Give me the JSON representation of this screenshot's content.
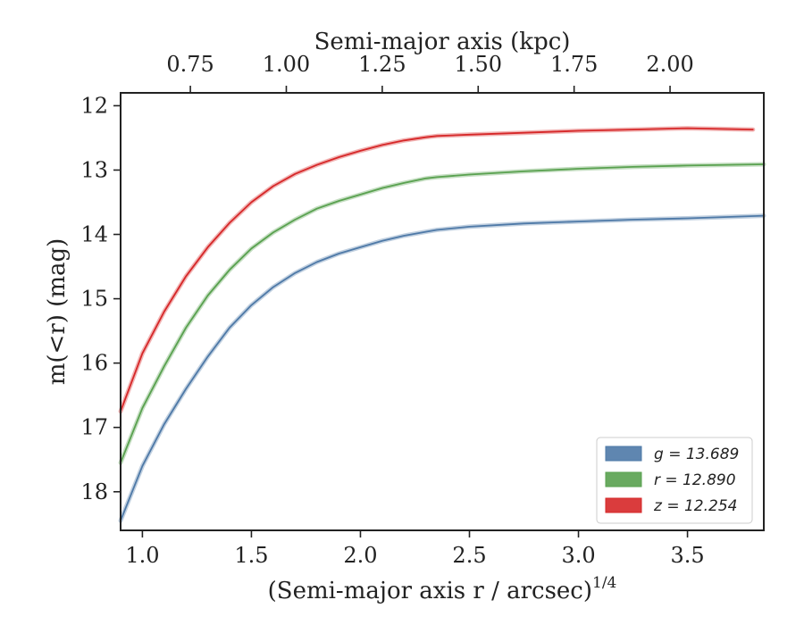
{
  "chart_data": {
    "type": "line",
    "title": "",
    "top_xlabel": "Semi-major axis (kpc)",
    "xlabel": "(Semi-major axis r / arcsec)",
    "xlabel_superscript": "1/4",
    "ylabel": "m(<r) (mag)",
    "xlim": [
      0.9,
      3.85
    ],
    "ylim": [
      18.6,
      11.8
    ],
    "y_inverted": true,
    "x_ticks": [
      "1.0",
      "1.5",
      "2.0",
      "2.5",
      "3.0",
      "3.5"
    ],
    "x_tick_values": [
      1.0,
      1.5,
      2.0,
      2.5,
      3.0,
      3.5
    ],
    "y_ticks": [
      "12",
      "13",
      "14",
      "15",
      "16",
      "17",
      "18"
    ],
    "y_tick_values": [
      12,
      13,
      14,
      15,
      16,
      17,
      18
    ],
    "top_x_ticks": [
      "0.75",
      "1.00",
      "1.25",
      "1.50",
      "1.75",
      "2.00"
    ],
    "top_x_tick_positions": [
      1.22,
      1.66,
      2.1,
      2.54,
      2.98,
      3.42
    ],
    "grid": false,
    "legend_position": "bottom-right",
    "series": [
      {
        "name": "g = 13.689",
        "legend_label": "$g = 13.689$",
        "color": "#4E79A7",
        "x": [
          0.9,
          1.0,
          1.1,
          1.2,
          1.3,
          1.4,
          1.5,
          1.6,
          1.7,
          1.8,
          1.9,
          2.0,
          2.1,
          2.2,
          2.3,
          2.35,
          2.5,
          2.75,
          3.0,
          3.25,
          3.5,
          3.85
        ],
        "y": [
          18.45,
          17.6,
          16.95,
          16.4,
          15.9,
          15.45,
          15.1,
          14.82,
          14.6,
          14.43,
          14.3,
          14.2,
          14.1,
          14.02,
          13.96,
          13.93,
          13.88,
          13.83,
          13.8,
          13.77,
          13.75,
          13.71
        ]
      },
      {
        "name": "r = 12.890",
        "legend_label": "$r = 12.890$",
        "color": "#59A14F",
        "x": [
          0.9,
          1.0,
          1.1,
          1.2,
          1.3,
          1.4,
          1.5,
          1.6,
          1.7,
          1.8,
          1.9,
          2.0,
          2.1,
          2.2,
          2.3,
          2.35,
          2.5,
          2.75,
          3.0,
          3.25,
          3.5,
          3.85
        ],
        "y": [
          17.55,
          16.7,
          16.05,
          15.45,
          14.95,
          14.55,
          14.22,
          13.97,
          13.77,
          13.6,
          13.48,
          13.38,
          13.28,
          13.2,
          13.13,
          13.11,
          13.07,
          13.02,
          12.98,
          12.95,
          12.93,
          12.91
        ]
      },
      {
        "name": "z = 12.254",
        "legend_label": "$z = 12.254$",
        "color": "#D62728",
        "x": [
          0.9,
          1.0,
          1.1,
          1.2,
          1.3,
          1.4,
          1.5,
          1.6,
          1.7,
          1.8,
          1.9,
          2.0,
          2.1,
          2.2,
          2.3,
          2.35,
          2.5,
          2.75,
          3.0,
          3.25,
          3.5,
          3.8
        ],
        "y": [
          16.75,
          15.85,
          15.2,
          14.65,
          14.2,
          13.82,
          13.5,
          13.25,
          13.06,
          12.92,
          12.8,
          12.7,
          12.61,
          12.54,
          12.49,
          12.47,
          12.45,
          12.42,
          12.39,
          12.37,
          12.35,
          12.37
        ]
      }
    ]
  }
}
